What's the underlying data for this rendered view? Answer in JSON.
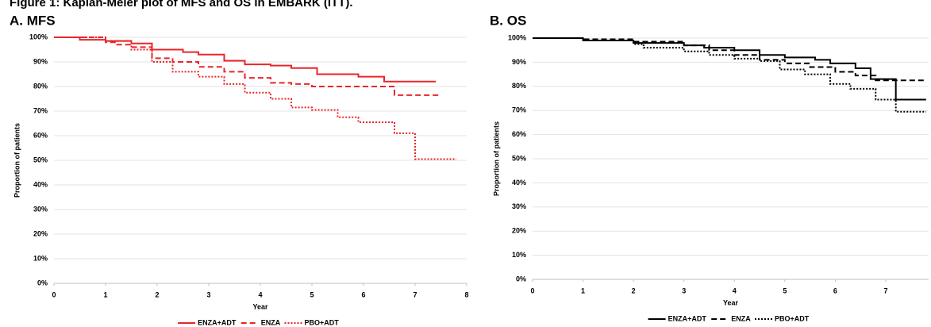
{
  "header": {
    "title": "Figure 1: Kaplan-Meier plot of MFS and OS in EMBARK (ITT)."
  },
  "chart_data": [
    {
      "type": "step",
      "title": "A. MFS",
      "xlabel": "Year",
      "ylabel": "Proportion of patients",
      "xlim": [
        0,
        8
      ],
      "xticks": [
        0,
        1,
        2,
        3,
        4,
        5,
        6,
        7,
        8
      ],
      "ylim": [
        0,
        100
      ],
      "yticks": [
        {
          "value": 0,
          "label": "0%"
        },
        {
          "value": 10,
          "label": "10%"
        },
        {
          "value": 20,
          "label": "20%"
        },
        {
          "value": 30,
          "label": "30%"
        },
        {
          "value": 40,
          "label": "40%"
        },
        {
          "value": 50,
          "label": "50%"
        },
        {
          "value": 60,
          "label": "60%"
        },
        {
          "value": 70,
          "label": "70%"
        },
        {
          "value": 80,
          "label": "80%"
        },
        {
          "value": 90,
          "label": "90%"
        },
        {
          "value": 100,
          "label": "100%"
        }
      ],
      "grid": true,
      "legend": "bottom",
      "series": [
        {
          "name": "ENZA+ADT",
          "color": "#e8262a",
          "dash": "solid",
          "x": [
            0,
            0.5,
            1,
            1.5,
            1.9,
            2.5,
            2.8,
            3.3,
            3.7,
            4.2,
            4.6,
            5.1,
            5.9,
            6.4,
            7.4
          ],
          "values": [
            100,
            99,
            98.5,
            97.5,
            95,
            94,
            93,
            90.5,
            89,
            88.5,
            87.5,
            85,
            84,
            82,
            82
          ]
        },
        {
          "name": "ENZA",
          "color": "#e8262a",
          "dash": "dashed",
          "x": [
            0,
            1,
            1.2,
            1.5,
            1.9,
            2.3,
            2.8,
            3.3,
            3.7,
            4.2,
            4.6,
            5,
            6.6,
            7.5
          ],
          "values": [
            100,
            98,
            97,
            96,
            91.5,
            90,
            88,
            86,
            83.5,
            81.5,
            81,
            80,
            76.5,
            76.5
          ]
        },
        {
          "name": "PBO+ADT",
          "color": "#e8262a",
          "dash": "dotted",
          "x": [
            0,
            1,
            1.5,
            1.9,
            2.3,
            2.8,
            3.3,
            3.7,
            4.2,
            4.6,
            5,
            5.5,
            5.9,
            6.6,
            7,
            7.8
          ],
          "values": [
            100,
            98.5,
            95,
            90,
            86,
            84,
            81,
            77.5,
            75,
            71.5,
            70.5,
            67.5,
            65.5,
            61,
            50.5,
            50.5
          ]
        }
      ]
    },
    {
      "type": "step",
      "title": "B. OS",
      "xlabel": "Year",
      "ylabel": "Proportion of patients",
      "xlim": [
        0,
        7.85
      ],
      "xticks": [
        0,
        1,
        2,
        3,
        4,
        5,
        6,
        7
      ],
      "ylim": [
        0,
        100
      ],
      "yticks": [
        {
          "value": 0,
          "label": "0%"
        },
        {
          "value": 10,
          "label": "10%"
        },
        {
          "value": 20,
          "label": "20%"
        },
        {
          "value": 30,
          "label": "30%"
        },
        {
          "value": 40,
          "label": "40%"
        },
        {
          "value": 50,
          "label": "50%"
        },
        {
          "value": 60,
          "label": "60%"
        },
        {
          "value": 70,
          "label": "70%"
        },
        {
          "value": 80,
          "label": "80%"
        },
        {
          "value": 90,
          "label": "90%"
        },
        {
          "value": 100,
          "label": "100%"
        }
      ],
      "grid": true,
      "legend": "bottom",
      "series": [
        {
          "name": "ENZA+ADT",
          "color": "#000000",
          "dash": "solid",
          "x": [
            0,
            1,
            2,
            3,
            3.4,
            4,
            4.5,
            5,
            5.6,
            5.9,
            6.4,
            6.7,
            7.2,
            7.8
          ],
          "values": [
            100,
            99,
            98,
            97,
            96,
            95,
            93,
            92,
            91,
            89.5,
            87.5,
            83,
            74.5,
            74.5
          ]
        },
        {
          "name": "ENZA",
          "color": "#000000",
          "dash": "dashed",
          "x": [
            0,
            1,
            2,
            3,
            3.5,
            4,
            4.5,
            5,
            5.5,
            6,
            6.4,
            6.8,
            7.8
          ],
          "values": [
            100,
            99.5,
            98.5,
            97,
            95,
            93,
            91,
            89.5,
            88,
            86,
            84.5,
            82.5,
            82.5
          ]
        },
        {
          "name": "PBO+ADT",
          "color": "#000000",
          "dash": "dotted",
          "x": [
            0,
            1,
            2,
            2.2,
            3,
            3.5,
            4,
            4.5,
            4.9,
            5.4,
            5.9,
            6.3,
            6.8,
            7.2,
            7.8
          ],
          "values": [
            100,
            99,
            97.5,
            96,
            94.5,
            93,
            91.5,
            90.5,
            87,
            85,
            81,
            79,
            74.5,
            69.5,
            69.5
          ]
        }
      ]
    }
  ]
}
